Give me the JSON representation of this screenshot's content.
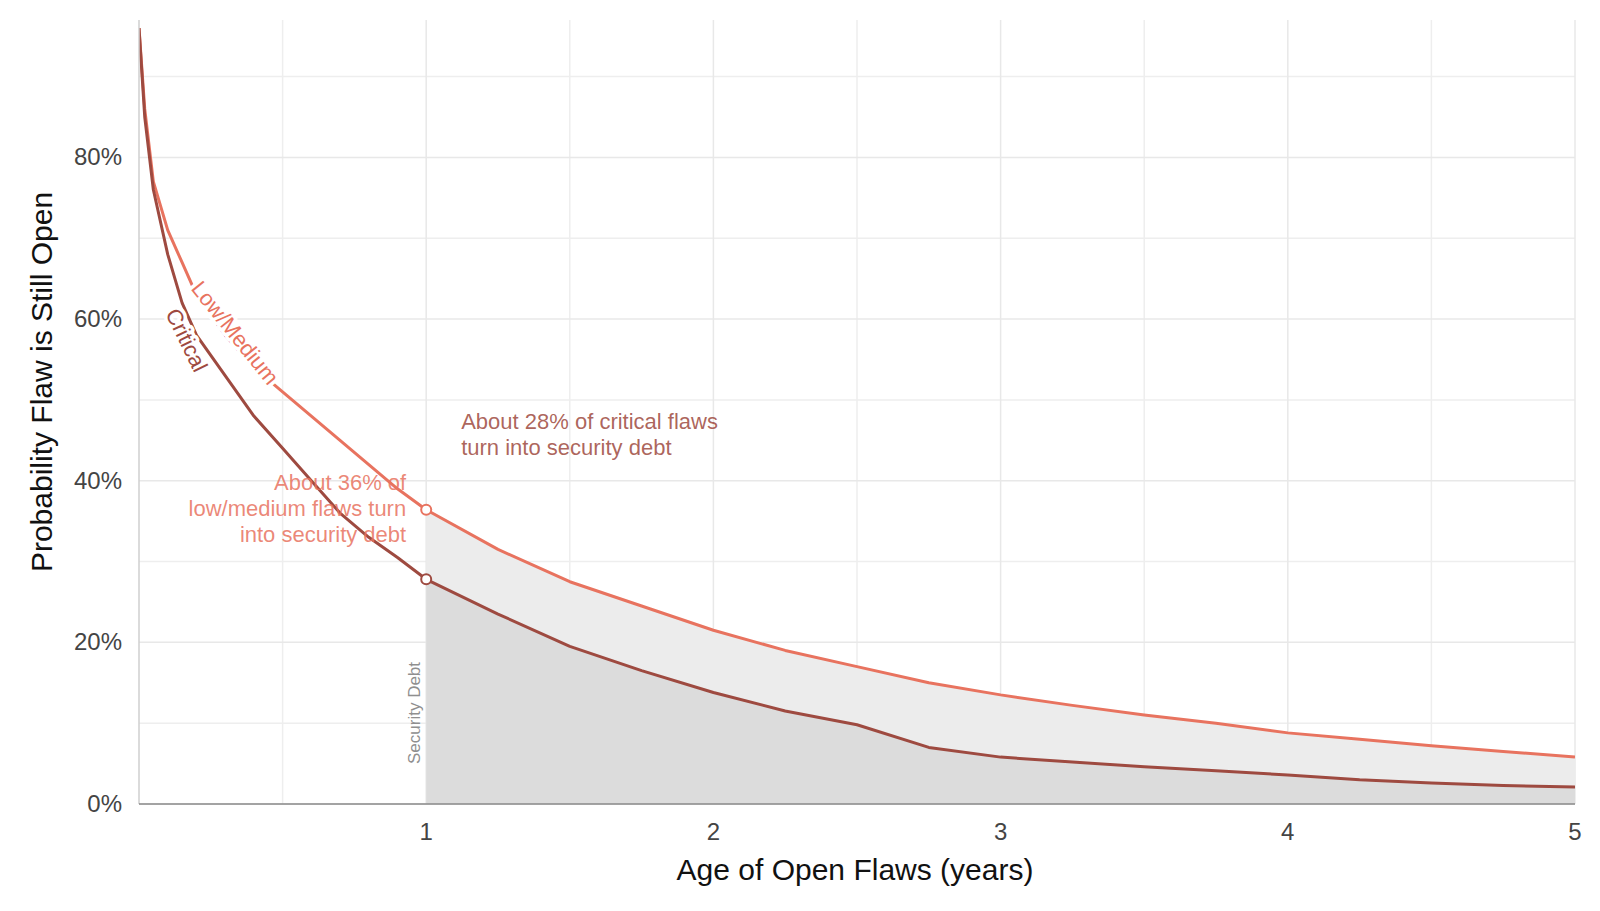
{
  "chart_data": {
    "type": "line",
    "x_label": "Age of Open Flaws (years)",
    "y_label": "Probability Flaw is Still Open",
    "x": [
      0,
      0.02,
      0.05,
      0.1,
      0.15,
      0.2,
      0.3,
      0.4,
      0.5,
      0.6,
      0.7,
      0.8,
      0.9,
      1,
      1.25,
      1.5,
      1.75,
      2,
      2.25,
      2.5,
      2.75,
      3,
      3.25,
      3.5,
      3.75,
      4,
      4.25,
      4.5,
      4.75,
      5
    ],
    "series": [
      {
        "name": "Low/Medium",
        "color": "#e8735f",
        "values": [
          96,
          86,
          77,
          71,
          67,
          63,
          58,
          54,
          51,
          48,
          45,
          42,
          39,
          36.4,
          31.5,
          27.5,
          24.5,
          21.5,
          19,
          17,
          15,
          13.5,
          12.2,
          11,
          10,
          8.8,
          8,
          7.2,
          6.5,
          5.8
        ]
      },
      {
        "name": "Critical",
        "color": "#9e4a40",
        "values": [
          96,
          85,
          76,
          68,
          62,
          58,
          53,
          48,
          44,
          40,
          36,
          33,
          30.5,
          27.8,
          23.5,
          19.5,
          16.5,
          13.8,
          11.5,
          9.8,
          7,
          5.8,
          5.2,
          4.6,
          4.1,
          3.6,
          3,
          2.6,
          2.3,
          2.1
        ]
      }
    ],
    "xlim": [
      0,
      5
    ],
    "ylim": [
      0,
      97
    ],
    "xticks": [
      1,
      2,
      3,
      4,
      5
    ],
    "yticks": [
      {
        "value": 0,
        "label": "0%"
      },
      {
        "value": 20,
        "label": "20%"
      },
      {
        "value": 40,
        "label": "40%"
      },
      {
        "value": 60,
        "label": "60%"
      },
      {
        "value": 80,
        "label": "80%"
      }
    ],
    "grid": true,
    "annotations": [
      {
        "text": [
          "About 36% of",
          "low/medium flaws turn",
          "into security debt"
        ],
        "x": 1
      },
      {
        "text": [
          "About 28% of critical flaws",
          "turn into security debt"
        ],
        "x": 1
      },
      {
        "text": "Security Debt",
        "x": 1
      }
    ]
  }
}
